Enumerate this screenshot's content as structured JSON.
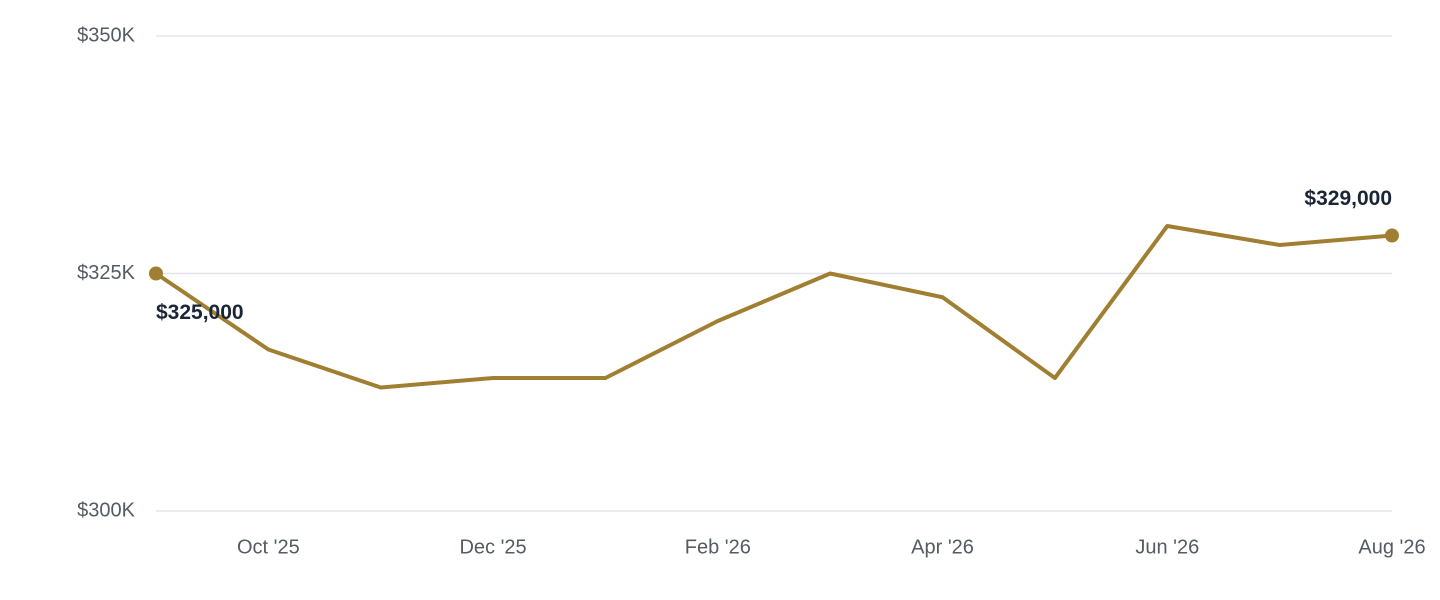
{
  "chart_data": {
    "type": "line",
    "categories": [
      null,
      "Oct '25",
      null,
      "Dec '25",
      null,
      "Feb '26",
      null,
      "Apr '26",
      null,
      "Jun '26",
      null,
      "Aug '26"
    ],
    "values": [
      325000,
      317000,
      313000,
      314000,
      314000,
      320000,
      325000,
      322500,
      314000,
      330000,
      328000,
      329000
    ],
    "value_labels": [
      "$325,000",
      null,
      null,
      null,
      null,
      null,
      null,
      null,
      null,
      null,
      null,
      "$329,000"
    ],
    "color": "#a07f32",
    "ylim": [
      300000,
      350000
    ],
    "yticks": [
      {
        "value": 300000,
        "label": "$300K"
      },
      {
        "value": 325000,
        "label": "$325K"
      },
      {
        "value": 350000,
        "label": "$350K"
      }
    ],
    "grid": true
  }
}
